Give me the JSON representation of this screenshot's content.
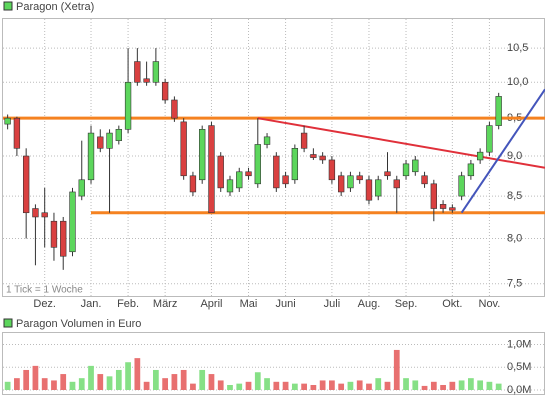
{
  "chart_data": [
    {
      "type": "candlestick",
      "title": "Paragon (Xetra)",
      "legend_color": "#5cd65c",
      "annotation": "1 Tick = 1 Woche",
      "categories": [
        null,
        null,
        null,
        null,
        "Dez.",
        null,
        null,
        null,
        null,
        "Jan.",
        null,
        null,
        null,
        "Feb.",
        null,
        null,
        null,
        "März",
        null,
        null,
        null,
        null,
        "April",
        null,
        null,
        null,
        "Mai",
        null,
        null,
        null,
        "Juni",
        null,
        null,
        null,
        null,
        "Juli",
        null,
        null,
        null,
        "Aug.",
        null,
        null,
        null,
        "Sep.",
        null,
        null,
        null,
        null,
        "Okt.",
        null,
        null,
        null,
        "Nov.",
        null
      ],
      "open": [
        9.42,
        9.5,
        9.0,
        8.35,
        8.3,
        8.2,
        8.2,
        7.85,
        8.5,
        8.7,
        9.25,
        9.1,
        9.2,
        9.35,
        10.3,
        10.05,
        10.0,
        10.0,
        9.75,
        9.45,
        8.75,
        8.7,
        9.4,
        9.0,
        8.55,
        8.6,
        8.8,
        8.65,
        9.15,
        9.0,
        8.75,
        8.7,
        9.3,
        9.02,
        9.0,
        8.95,
        8.75,
        8.6,
        8.75,
        8.7,
        8.5,
        8.8,
        8.7,
        8.75,
        8.8,
        8.75,
        8.65,
        8.4,
        8.36,
        8.5,
        8.75,
        8.95,
        9.05,
        9.4
      ],
      "high": [
        9.55,
        9.52,
        9.1,
        8.4,
        8.6,
        8.3,
        8.25,
        8.6,
        9.2,
        9.4,
        9.35,
        9.35,
        9.4,
        10.5,
        10.5,
        10.3,
        10.5,
        10.05,
        9.8,
        9.5,
        8.8,
        9.4,
        9.45,
        9.05,
        8.75,
        8.85,
        8.85,
        9.5,
        9.3,
        9.05,
        8.8,
        9.15,
        9.4,
        9.1,
        9.05,
        9.0,
        8.8,
        8.8,
        8.8,
        8.75,
        8.75,
        9.05,
        8.75,
        8.95,
        9.0,
        8.8,
        8.7,
        8.45,
        8.4,
        8.8,
        8.95,
        9.1,
        9.45,
        9.85
      ],
      "low": [
        9.35,
        9.0,
        8.0,
        7.7,
        7.9,
        7.75,
        7.65,
        7.8,
        8.45,
        8.65,
        9.05,
        8.3,
        9.15,
        9.3,
        9.95,
        9.95,
        9.95,
        9.7,
        9.45,
        8.7,
        8.5,
        8.65,
        8.3,
        8.55,
        8.5,
        8.55,
        8.7,
        8.6,
        9.1,
        8.55,
        8.6,
        8.65,
        9.05,
        8.95,
        8.9,
        8.65,
        8.5,
        8.55,
        8.65,
        8.4,
        8.45,
        8.7,
        8.3,
        8.7,
        8.75,
        8.6,
        8.2,
        8.3,
        8.3,
        8.45,
        8.7,
        8.9,
        9.0,
        9.35
      ],
      "close": [
        9.5,
        9.1,
        8.3,
        8.25,
        8.25,
        7.9,
        7.8,
        8.55,
        8.7,
        9.3,
        9.1,
        9.3,
        9.35,
        10.0,
        10.0,
        10.0,
        10.3,
        9.75,
        9.5,
        8.75,
        8.55,
        9.35,
        8.3,
        8.6,
        8.7,
        8.8,
        8.75,
        9.15,
        9.25,
        8.6,
        8.65,
        9.1,
        9.1,
        8.98,
        8.95,
        8.7,
        8.55,
        8.75,
        8.7,
        8.45,
        8.7,
        8.75,
        8.6,
        8.9,
        8.95,
        8.65,
        8.35,
        8.35,
        8.33,
        8.75,
        8.9,
        9.05,
        9.4,
        9.8
      ],
      "up_color": "#5cd65c",
      "down_color": "#d94040",
      "xlim": [
        -0.5,
        58
      ],
      "ylim": [
        7.38,
        10.93
      ],
      "log": true,
      "grid": true,
      "yticks": [
        {
          "value": 7.5,
          "label": "7,5"
        },
        {
          "value": 8,
          "label": "8,0"
        },
        {
          "value": 8.5,
          "label": "8,5"
        },
        {
          "value": 9,
          "label": "9,0"
        },
        {
          "value": 9.5,
          "label": "9,5"
        },
        {
          "value": 10,
          "label": "10,0"
        },
        {
          "value": 10.5,
          "label": "10,5"
        }
      ],
      "lines": [
        {
          "color": "#f58220",
          "x": [
            -0.5,
            58
          ],
          "y": [
            9.5,
            9.5
          ]
        },
        {
          "color": "#f58220",
          "x": [
            9,
            58
          ],
          "y": [
            8.3,
            8.3
          ]
        },
        {
          "color": "#e0303a",
          "x": [
            27,
            58
          ],
          "y": [
            9.5,
            8.85
          ]
        },
        {
          "color": "#4455bb",
          "x": [
            49,
            58
          ],
          "y": [
            8.3,
            9.9
          ]
        }
      ]
    },
    {
      "type": "bar",
      "title": "Paragon Volumen in Euro",
      "legend_color": "#5cd65c",
      "values": [
        180000,
        260000,
        440000,
        530000,
        260000,
        210000,
        350000,
        180000,
        260000,
        530000,
        350000,
        300000,
        440000,
        610000,
        700000,
        180000,
        440000,
        260000,
        350000,
        440000,
        140000,
        440000,
        350000,
        210000,
        110000,
        140000,
        180000,
        390000,
        260000,
        180000,
        180000,
        140000,
        140000,
        110000,
        210000,
        210000,
        140000,
        180000,
        210000,
        140000,
        260000,
        180000,
        880000,
        260000,
        210000,
        90000,
        180000,
        110000,
        180000,
        210000,
        260000,
        210000,
        180000,
        140000
      ],
      "up_color": "#86e086",
      "down_color": "#e87070",
      "xlim": [
        -0.5,
        58
      ],
      "ylim": [
        0,
        1230000
      ],
      "grid": true,
      "yticks": [
        {
          "value": 0,
          "label": "0,0M"
        },
        {
          "value": 500000,
          "label": "0,5M"
        },
        {
          "value": 1000000,
          "label": "1,0M"
        }
      ]
    }
  ]
}
